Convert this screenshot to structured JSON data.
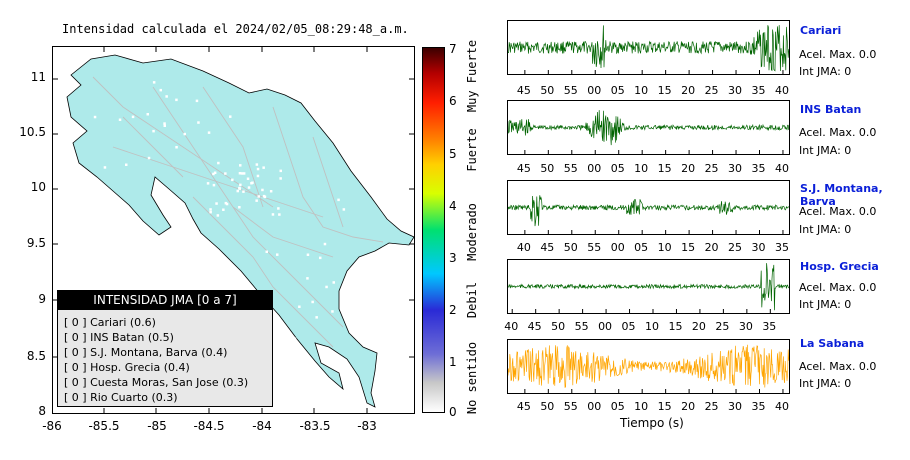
{
  "map": {
    "title": "Intensidad calculada el 2024/02/05_08:29:48_a.m.",
    "y_ticks": [
      "11",
      "10.5",
      "10",
      "9.5",
      "9",
      "8.5",
      "8"
    ],
    "x_ticks": [
      "-86",
      "-85.5",
      "-85",
      "-84.5",
      "-84",
      "-83.5",
      "-83"
    ],
    "land_color": "#aeeaea",
    "road_color": "#c0c0c0"
  },
  "colorbar": {
    "ticks": [
      "7",
      "6",
      "5",
      "4",
      "3",
      "2",
      "1",
      "0"
    ],
    "labels": [
      "Muy Fuerte",
      "Fuerte",
      "Moderado",
      "Debil",
      "No sentido"
    ]
  },
  "legend": {
    "title": "INTENSIDAD JMA [0 a 7]",
    "items": [
      "[ 0 ]  Cariari (0.6)",
      "[ 0 ]  INS Batan (0.5)",
      "[ 0 ]  S.J. Montana, Barva (0.4)",
      "[ 0 ]  Hosp. Grecia (0.4)",
      "[ 0 ]  Cuesta Moras, San Jose (0.3)",
      "[ 0 ]  Rio Cuarto (0.3)"
    ]
  },
  "traces": [
    {
      "name": "Cariari",
      "accel": "Acel. Max. 0.0",
      "jma": "Int JMA: 0",
      "color": "#006400",
      "ticks": [
        "45",
        "50",
        "55",
        "00",
        "05",
        "10",
        "15",
        "20",
        "25",
        "30",
        "35",
        "40"
      ],
      "tick_start": 0.06,
      "tick_step": 0.0835
    },
    {
      "name": "INS Batan",
      "accel": "Acel. Max. 0.0",
      "jma": "Int JMA: 0",
      "color": "#006400",
      "ticks": [
        "45",
        "50",
        "55",
        "00",
        "05",
        "10",
        "15",
        "20",
        "25",
        "30",
        "35",
        "40"
      ],
      "tick_start": 0.06,
      "tick_step": 0.0835
    },
    {
      "name": "S.J. Montana, Barva",
      "accel": "Acel. Max. 0.0",
      "jma": "Int JMA: 0",
      "color": "#006400",
      "ticks": [
        "40",
        "45",
        "50",
        "55",
        "00",
        "05",
        "10",
        "15",
        "20",
        "25",
        "30",
        "35"
      ],
      "tick_start": 0.06,
      "tick_step": 0.0835
    },
    {
      "name": "Hosp. Grecia",
      "accel": "Acel. Max. 0.0",
      "jma": "Int JMA: 0",
      "color": "#006400",
      "ticks": [
        "40",
        "45",
        "50",
        "55",
        "00",
        "05",
        "10",
        "15",
        "20",
        "25",
        "30",
        "35"
      ],
      "tick_start": 0.015,
      "tick_step": 0.0835
    },
    {
      "name": "La Sabana",
      "accel": "Acel. Max. 0.0",
      "jma": "Int JMA: 0",
      "color": "#ffa500",
      "ticks": [
        "45",
        "50",
        "55",
        "00",
        "05",
        "10",
        "15",
        "20",
        "25",
        "30",
        "35",
        "40"
      ],
      "tick_start": 0.06,
      "tick_step": 0.0835
    }
  ],
  "x_axis_label": "Tiempo (s)"
}
